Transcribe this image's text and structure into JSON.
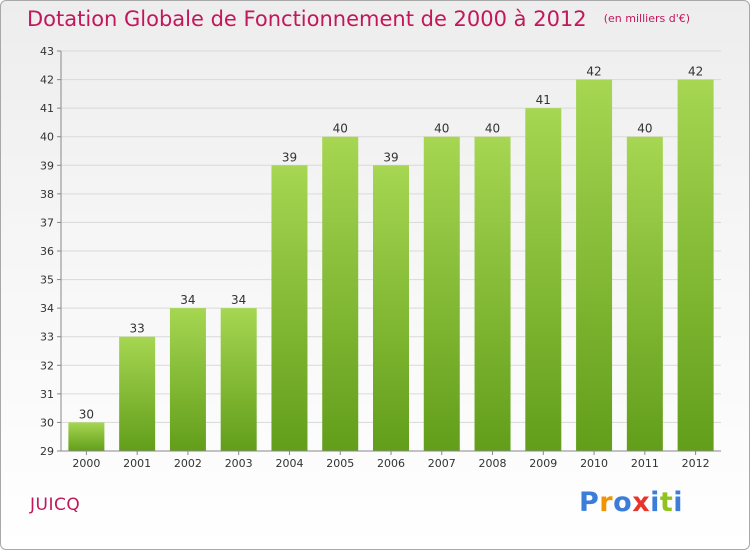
{
  "header": {
    "title": "Dotation Globale de Fonctionnement de 2000 à 2012",
    "subtitle": "(en milliers d'€)"
  },
  "footer": {
    "commune": "JUICQ",
    "logo_letters": [
      {
        "char": "P",
        "color": "#3b7dd8"
      },
      {
        "char": "r",
        "color": "#f29400"
      },
      {
        "char": "o",
        "color": "#3b7dd8"
      },
      {
        "char": "x",
        "color": "#e8342c"
      },
      {
        "char": "i",
        "color": "#3b7dd8"
      },
      {
        "char": "t",
        "color": "#8fc31f"
      },
      {
        "char": "i",
        "color": "#3b7dd8"
      }
    ]
  },
  "colors": {
    "bar_top": "#a6d652",
    "bar_bottom": "#629e1a",
    "axis": "#888888",
    "grid": "#d9d9d9",
    "title": "#c2185b"
  },
  "chart_data": {
    "type": "bar",
    "categories": [
      "2000",
      "2001",
      "2002",
      "2003",
      "2004",
      "2005",
      "2006",
      "2007",
      "2008",
      "2009",
      "2010",
      "2011",
      "2012"
    ],
    "values": [
      30,
      33,
      34,
      34,
      39,
      40,
      39,
      40,
      40,
      41,
      42,
      40,
      42
    ],
    "ylim": [
      29,
      43
    ],
    "yticks": [
      29,
      30,
      31,
      32,
      33,
      34,
      35,
      36,
      37,
      38,
      39,
      40,
      41,
      42,
      43
    ],
    "grid": true,
    "data_labels": true
  }
}
